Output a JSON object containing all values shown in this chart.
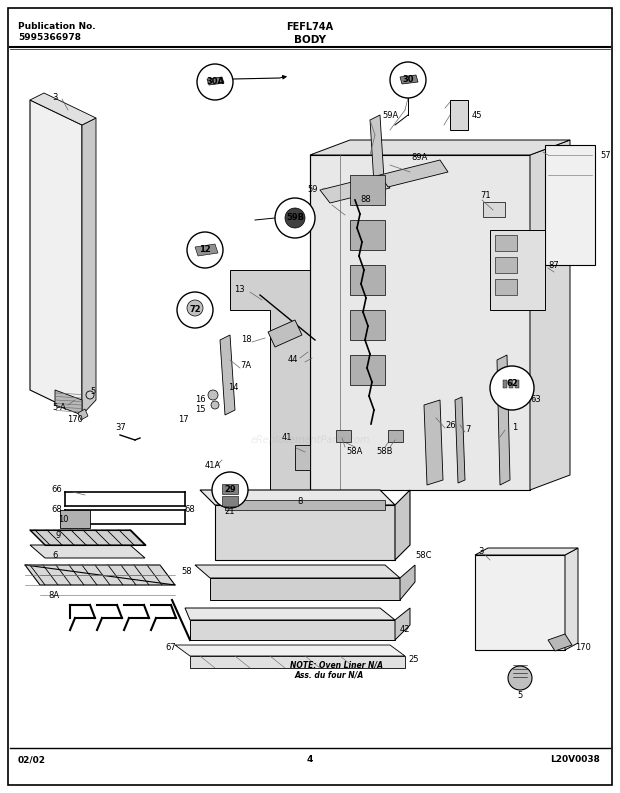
{
  "title_left1": "Publication No.",
  "title_left2": "5995366978",
  "title_center": "FEFL74A",
  "section": "BODY",
  "footer_left": "02/02",
  "footer_center": "4",
  "footer_right": "L20V0038",
  "note_text": "NOTE: Oven Liner N/A\nAss. du four N/A",
  "bg_color": "#ffffff",
  "lc": "#000000",
  "figsize": [
    6.2,
    7.93
  ],
  "dpi": 100
}
